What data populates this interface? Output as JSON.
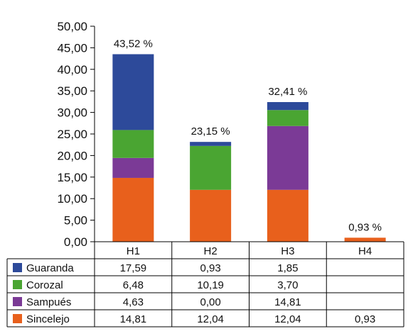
{
  "chart_data": {
    "type": "bar",
    "stacked": true,
    "categories": [
      "H1",
      "H2",
      "H3",
      "H4"
    ],
    "series": [
      {
        "name": "Sincelejo",
        "color": "#e8601c",
        "values": [
          14.81,
          12.04,
          12.04,
          0.93
        ],
        "labels": [
          "14,81",
          "12,04",
          "12,04",
          "0,93"
        ]
      },
      {
        "name": "Sampués",
        "color": "#7b3a96",
        "values": [
          4.63,
          0.0,
          14.81,
          null
        ],
        "labels": [
          "4,63",
          "0,00",
          "14,81",
          ""
        ]
      },
      {
        "name": "Corozal",
        "color": "#4aa532",
        "values": [
          6.48,
          10.19,
          3.7,
          null
        ],
        "labels": [
          "6,48",
          "10,19",
          "3,70",
          ""
        ]
      },
      {
        "name": "Guaranda",
        "color": "#2d4a9a",
        "values": [
          17.59,
          0.93,
          1.85,
          null
        ],
        "labels": [
          "17,59",
          "0,93",
          "1,85",
          ""
        ]
      }
    ],
    "totals": [
      43.52,
      23.15,
      32.41,
      0.93
    ],
    "total_labels": [
      "43,52 %",
      "23,15 %",
      "32,41 %",
      "0,93 %"
    ],
    "ylim": [
      0,
      50
    ],
    "y_ticks": [
      0,
      5,
      10,
      15,
      20,
      25,
      30,
      35,
      40,
      45,
      50
    ],
    "y_tick_labels": [
      "0,00",
      "5,00",
      "10,00",
      "15,00",
      "20,00",
      "25,00",
      "30,00",
      "35,00",
      "40,00",
      "45,00",
      "50,00"
    ],
    "table_row_order": [
      "Guaranda",
      "Corozal",
      "Sampués",
      "Sincelejo"
    ],
    "grid": false,
    "legend": "data-table"
  }
}
